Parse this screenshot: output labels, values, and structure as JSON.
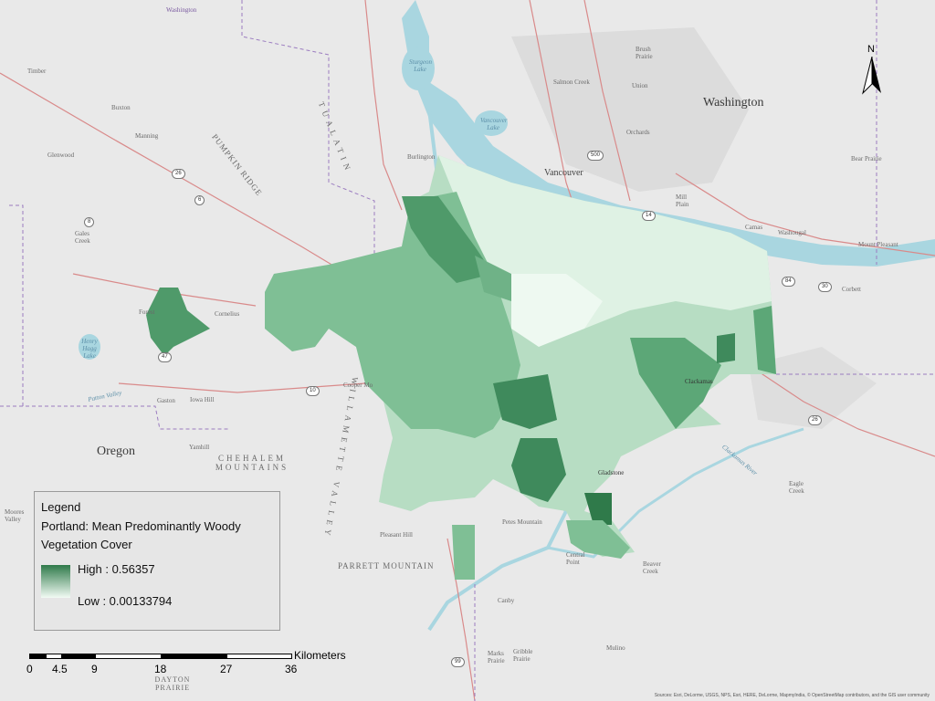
{
  "colors": {
    "background": "#e9e9e9",
    "water": "#a9d6e0",
    "high": "#2f7a4a",
    "low": "#f2fbf4",
    "roads_major": "#d98a8a",
    "boundary": "#9b7cc0"
  },
  "legend": {
    "heading": "Legend",
    "title_line1": "Portland: Mean Predominantly Woody",
    "title_line2": "Vegetation Cover",
    "high_label": "High : 0.56357",
    "low_label": "Low : 0.00133794"
  },
  "scalebar": {
    "unit": "Kilometers",
    "ticks": [
      "0",
      "4.5",
      "9",
      "18",
      "27",
      "36"
    ]
  },
  "north_label": "N",
  "credits": "Sources: Esri, DeLorme, USGS, NPS, Esri, HERE, DeLorme, MapmyIndia, © OpenStreetMap contributors, and the GIS user community",
  "labels": {
    "washington_top": "Washington",
    "washington": "Washington",
    "oregon": "Oregon",
    "vancouver": "Vancouver",
    "timber": "Timber",
    "buxton": "Buxton",
    "manning": "Manning",
    "glenwood": "Glenwood",
    "gales_creek": "Gales Creek",
    "forest_grove": "Forest",
    "cornelius": "Cornelius",
    "gaston": "Gaston",
    "iowa_hill": "Iowa Hill",
    "yamhill": "Yamhill",
    "moores_valley": "Moores Valley",
    "burlington": "Burlington",
    "brush_prairie": "Brush Prairie",
    "salmon_creek": "Salmon Creek",
    "union": "Union",
    "orchards": "Orchards",
    "mill_plain": "Mill Plain",
    "camas": "Camas",
    "washougal": "Washougal",
    "bear_prairie": "Bear Prairie",
    "mount_pleasant": "Mount Pleasant",
    "corbett": "Corbett",
    "clackamas": "Clackamas",
    "gladstone": "Gladstone",
    "eagle_creek": "Eagle Creek",
    "beaver_creek": "Beaver Creek",
    "central_point": "Central Point",
    "petes_mountain": "Petes Mountain",
    "pleasant_hill": "Pleasant Hill",
    "canby": "Canby",
    "mulino": "Mulino",
    "marks_prairie": "Marks Prairie",
    "gribble_prairie": "Gribble Prairie",
    "dayton_prairie": "DAYTON PRAIRIE",
    "cooper_mountain": "Cooper Mo",
    "pumpkin_ridge": "PUMPKIN RIDGE",
    "tualatin_mtns": "TUALATIN",
    "chehalem_mtns": "CHEHALEM MOUNTAINS",
    "parrett_mountain": "PARRETT MOUNTAIN",
    "willamette_valley": "WILLAMETTE VALLEY",
    "sturgeon_lake": "Sturgeon Lake",
    "vancouver_lake": "Vancouver Lake",
    "henry_hagg_lake": "Henry Hagg Lake",
    "patton_valley": "Patton Valley",
    "clackamas_river": "Clackamas River"
  },
  "shields": [
    "26",
    "6",
    "8",
    "47",
    "10",
    "500",
    "14",
    "84",
    "30",
    "26",
    "99"
  ]
}
